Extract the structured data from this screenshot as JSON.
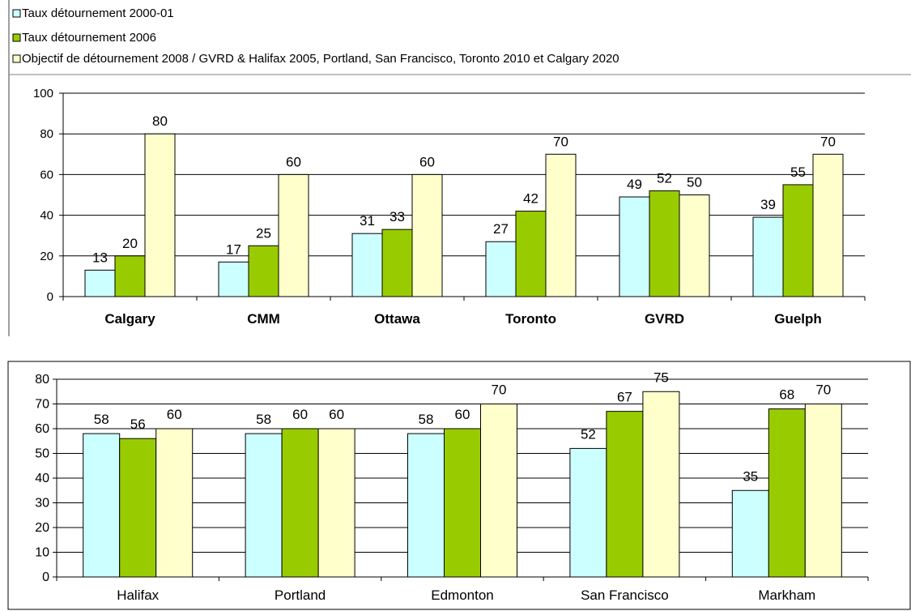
{
  "colors": {
    "series1": "#ccffff",
    "series2": "#99cc00",
    "series3": "#ffffcc",
    "stroke": "#000000",
    "frame": "#808080",
    "grid": "#000000",
    "text": "#000000"
  },
  "legend": {
    "items": [
      {
        "label": "Taux détournement  2000-01",
        "color": "#ccffff"
      },
      {
        "label": "Taux détournement  2006",
        "color": "#99cc00"
      },
      {
        "label": "Objectif de détournement  2008  / GVRD & Halifax 2005, Portland, San Francisco, Toronto 2010 et Calgary 2020",
        "color": "#ffffcc"
      }
    ]
  },
  "chart_data": [
    {
      "type": "bar",
      "categories": [
        "Calgary",
        "CMM",
        "Ottawa",
        "Toronto",
        "GVRD",
        "Guelph"
      ],
      "series": [
        {
          "name": "Taux détournement  2000-01",
          "values": [
            13,
            17,
            31,
            27,
            49,
            39
          ]
        },
        {
          "name": "Taux détournement  2006",
          "values": [
            20,
            25,
            33,
            42,
            52,
            55
          ]
        },
        {
          "name": "Objectif de détournement  2008  / GVRD & Halifax 2005, Portland, San Francisco, Toronto 2010 et Calgary 2020",
          "values": [
            80,
            60,
            60,
            70,
            50,
            70
          ]
        }
      ],
      "yticks": [
        0,
        20,
        40,
        60,
        80,
        100
      ],
      "ylim": [
        0,
        100
      ],
      "grid": true,
      "legend": "top"
    },
    {
      "type": "bar",
      "categories": [
        "Halifax",
        "Portland",
        "Edmonton",
        "San Francisco",
        "Markham"
      ],
      "series": [
        {
          "values": [
            58,
            58,
            58,
            52,
            35
          ]
        },
        {
          "values": [
            56,
            60,
            60,
            67,
            68
          ]
        },
        {
          "values": [
            60,
            60,
            70,
            75,
            70
          ]
        }
      ],
      "yticks": [
        0,
        10,
        20,
        30,
        40,
        50,
        60,
        70,
        80
      ],
      "ylim": [
        0,
        80
      ],
      "grid": true,
      "legend": "none"
    }
  ]
}
